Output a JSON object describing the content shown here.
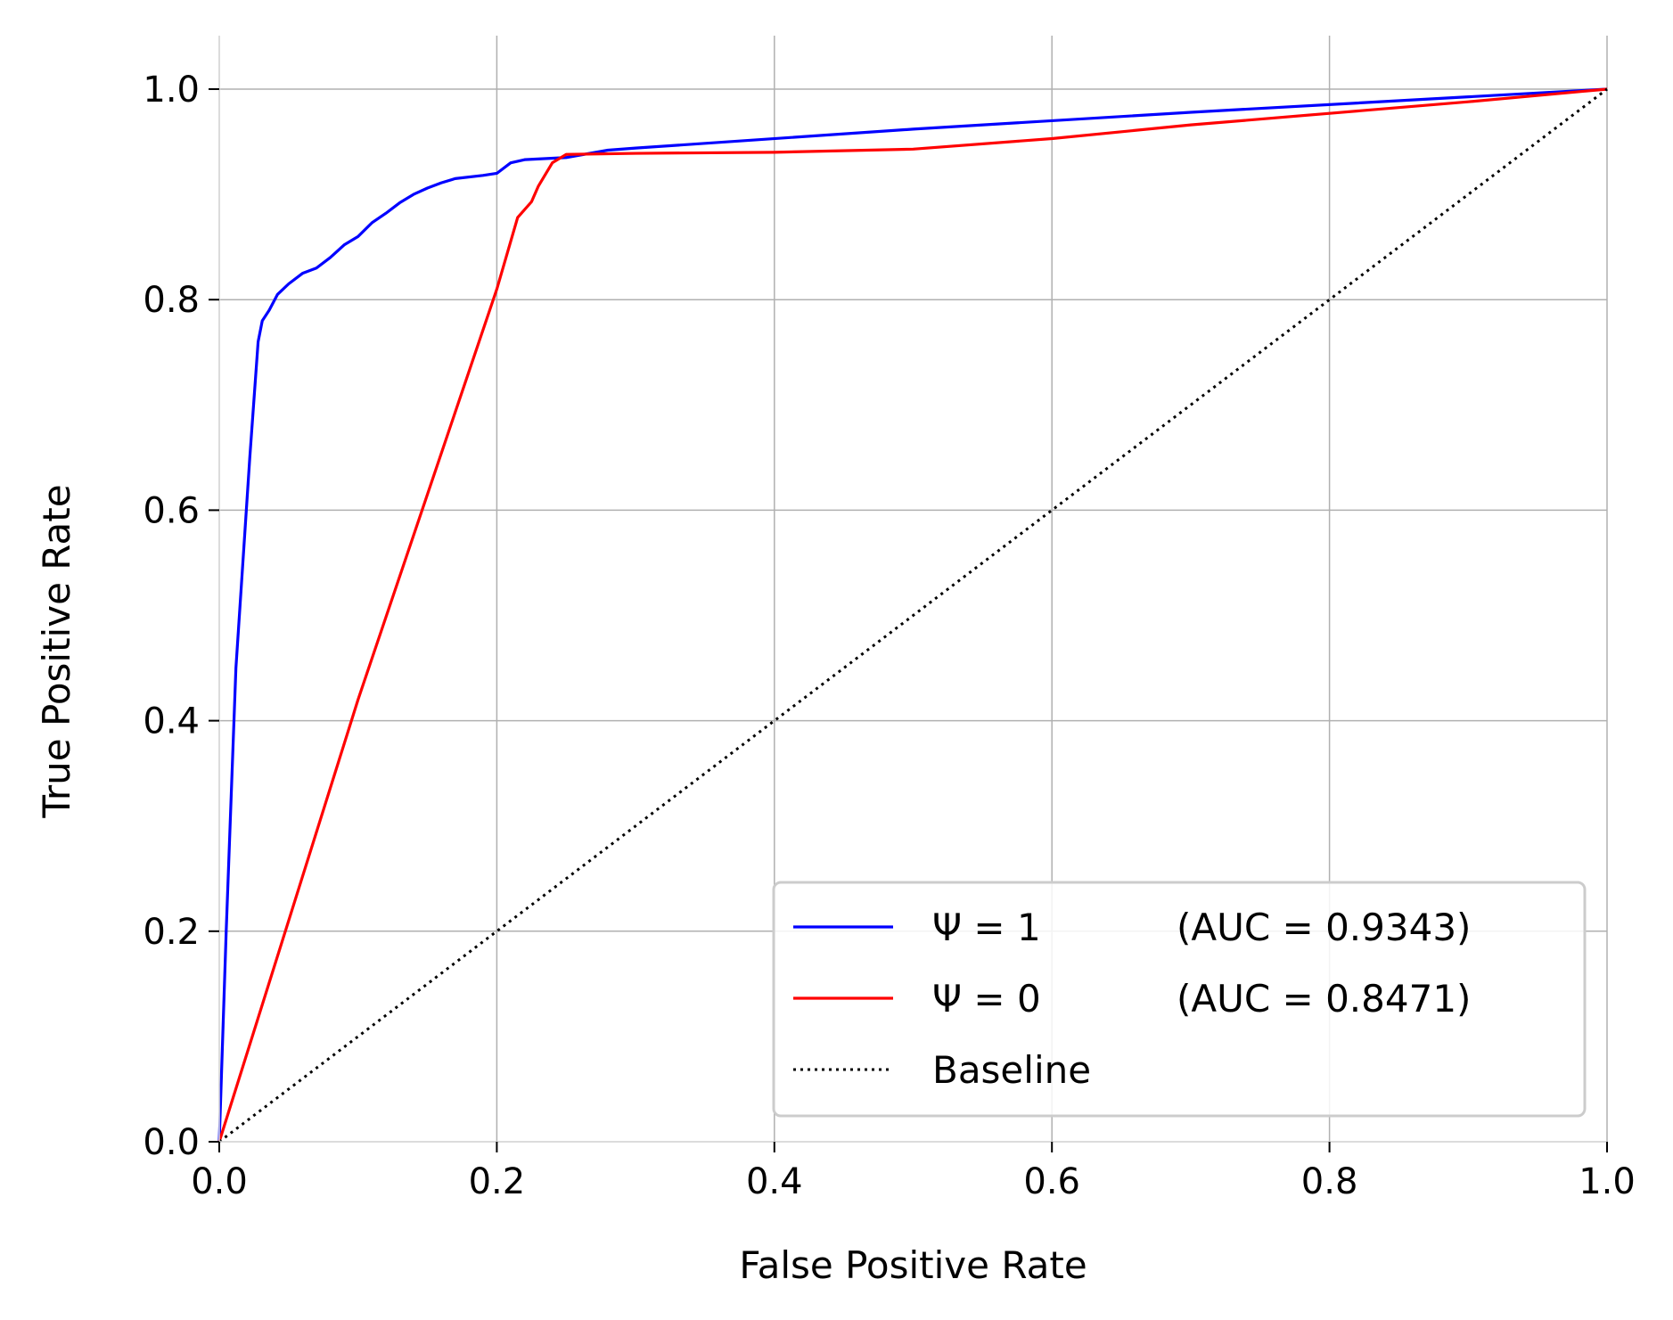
{
  "chart_data": {
    "type": "line",
    "title": "",
    "xlabel": "False Positive Rate",
    "ylabel": "True Positive Rate",
    "xlim": [
      0,
      1
    ],
    "ylim": [
      0,
      1.05
    ],
    "xticks": [
      "0.0",
      "0.2",
      "0.4",
      "0.6",
      "0.8",
      "1.0"
    ],
    "yticks": [
      "0.0",
      "0.2",
      "0.4",
      "0.6",
      "0.8",
      "1.0"
    ],
    "grid": true,
    "legend": "bottom-right",
    "series": [
      {
        "name": "Ψ = 1",
        "auc_label": "(AUC = 0.9343)",
        "color": "#0000ff",
        "style": "solid",
        "points": [
          [
            0,
            0
          ],
          [
            0.005,
            0.2
          ],
          [
            0.012,
            0.45
          ],
          [
            0.022,
            0.65
          ],
          [
            0.028,
            0.76
          ],
          [
            0.031,
            0.78
          ],
          [
            0.036,
            0.79
          ],
          [
            0.042,
            0.805
          ],
          [
            0.05,
            0.815
          ],
          [
            0.06,
            0.825
          ],
          [
            0.07,
            0.83
          ],
          [
            0.08,
            0.84
          ],
          [
            0.09,
            0.852
          ],
          [
            0.1,
            0.86
          ],
          [
            0.11,
            0.873
          ],
          [
            0.12,
            0.882
          ],
          [
            0.13,
            0.892
          ],
          [
            0.14,
            0.9
          ],
          [
            0.15,
            0.906
          ],
          [
            0.16,
            0.911
          ],
          [
            0.17,
            0.915
          ],
          [
            0.19,
            0.918
          ],
          [
            0.2,
            0.92
          ],
          [
            0.21,
            0.93
          ],
          [
            0.22,
            0.933
          ],
          [
            0.25,
            0.935
          ],
          [
            0.28,
            0.942
          ],
          [
            0.3,
            0.944
          ],
          [
            0.5,
            0.962
          ],
          [
            0.7,
            0.978
          ],
          [
            1.0,
            1.0
          ]
        ]
      },
      {
        "name": "Ψ = 0",
        "auc_label": "(AUC = 0.8471)",
        "color": "#ff0000",
        "style": "solid",
        "points": [
          [
            0,
            0
          ],
          [
            0.1,
            0.42
          ],
          [
            0.2,
            0.81
          ],
          [
            0.215,
            0.878
          ],
          [
            0.225,
            0.893
          ],
          [
            0.23,
            0.908
          ],
          [
            0.24,
            0.93
          ],
          [
            0.25,
            0.938
          ],
          [
            0.3,
            0.939
          ],
          [
            0.4,
            0.94
          ],
          [
            0.5,
            0.943
          ],
          [
            0.6,
            0.953
          ],
          [
            0.7,
            0.966
          ],
          [
            0.8,
            0.977
          ],
          [
            0.9,
            0.988
          ],
          [
            1.0,
            1.0
          ]
        ]
      },
      {
        "name": "Baseline",
        "auc_label": "",
        "color": "#000000",
        "style": "dotted",
        "points": [
          [
            0,
            0
          ],
          [
            1,
            1
          ]
        ]
      }
    ]
  }
}
